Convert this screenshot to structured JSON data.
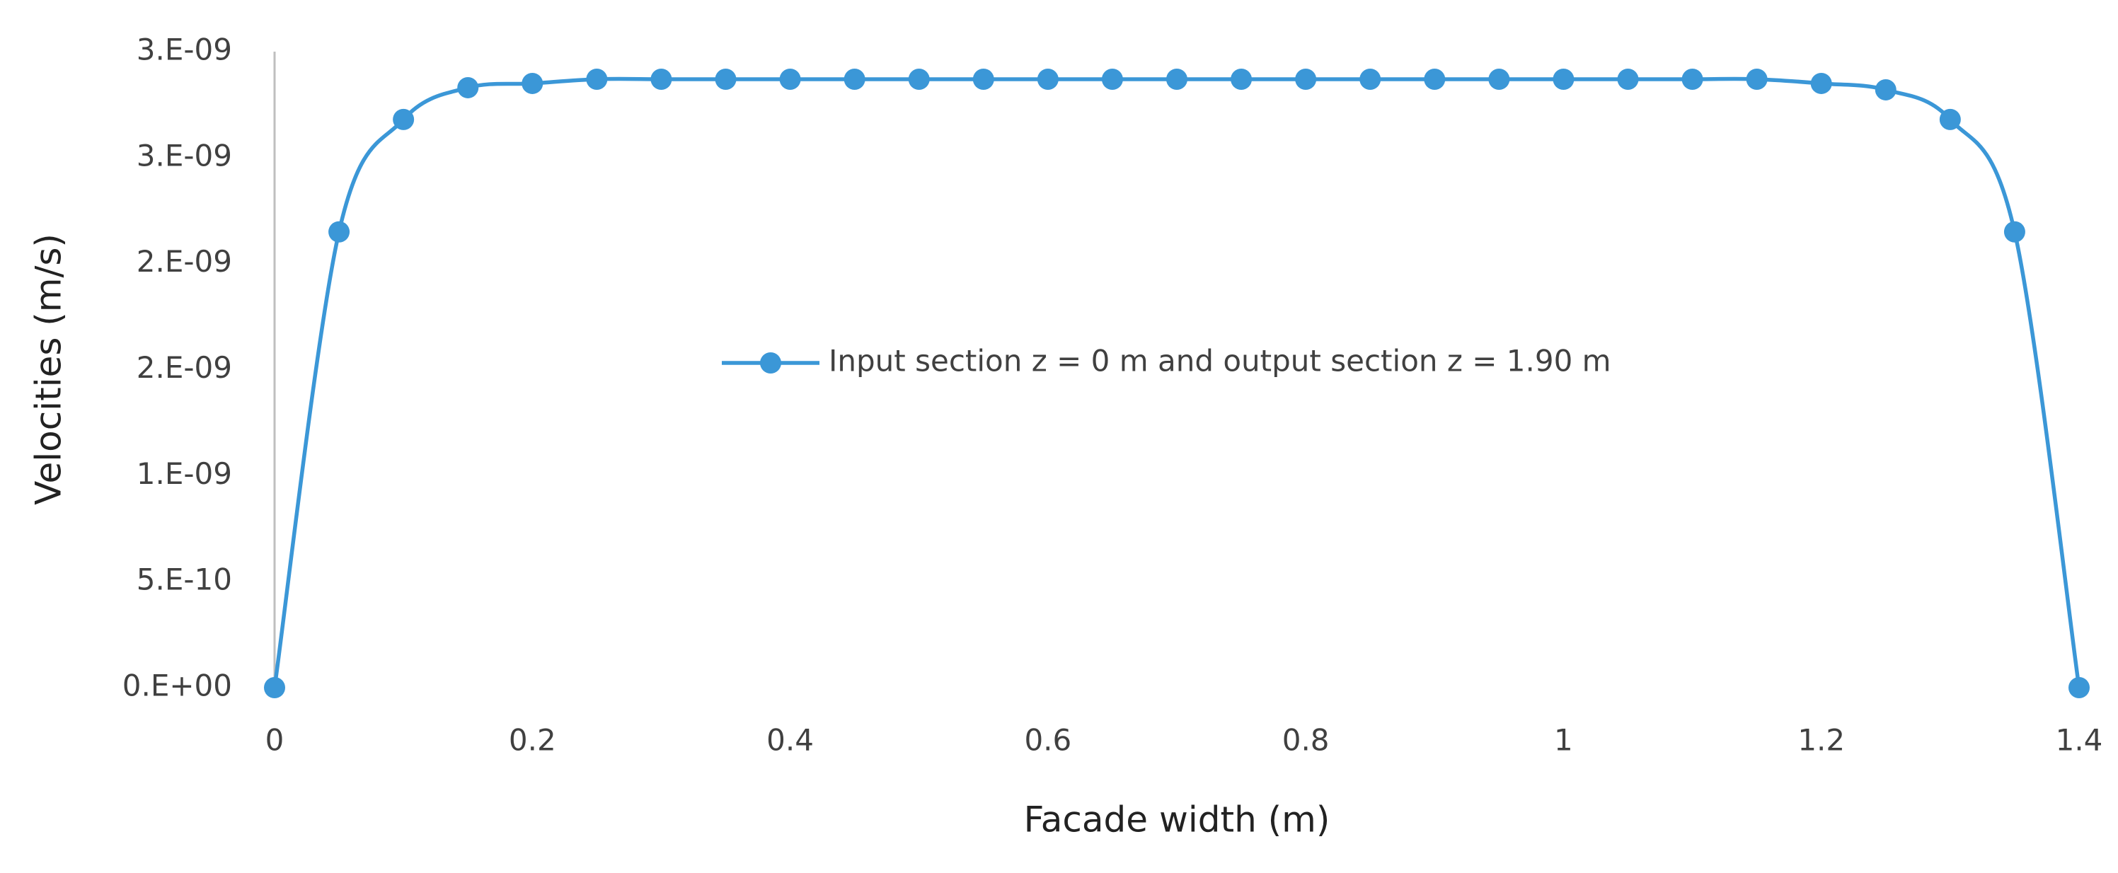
{
  "chart_data": {
    "type": "line",
    "x_label": "Facade width (m)",
    "y_label": "Velocities (m/s)",
    "x": [
      0,
      0.05,
      0.1,
      0.15,
      0.2,
      0.25,
      0.3,
      0.35,
      0.4,
      0.45,
      0.5,
      0.55,
      0.6,
      0.65,
      0.7,
      0.75,
      0.8,
      0.85,
      0.9,
      0.95,
      1,
      1.05,
      1.1,
      1.15,
      1.2,
      1.25,
      1.3,
      1.35,
      1.4
    ],
    "series": [
      {
        "name": "Input section z = 0 m and output section z = 1.90 m",
        "color": "#3b97d7",
        "values": [
          0,
          2.15e-09,
          2.68e-09,
          2.83e-09,
          2.85e-09,
          2.87e-09,
          2.87e-09,
          2.87e-09,
          2.87e-09,
          2.87e-09,
          2.87e-09,
          2.87e-09,
          2.87e-09,
          2.87e-09,
          2.87e-09,
          2.87e-09,
          2.87e-09,
          2.87e-09,
          2.87e-09,
          2.87e-09,
          2.87e-09,
          2.87e-09,
          2.87e-09,
          2.87e-09,
          2.85e-09,
          2.82e-09,
          2.68e-09,
          2.15e-09,
          0
        ]
      }
    ],
    "xlim": [
      0,
      1.4
    ],
    "xticks": [
      0,
      0.2,
      0.4,
      0.6,
      0.8,
      1,
      1.2,
      1.4
    ],
    "ylim": [
      0,
      3e-09
    ],
    "yticks": [
      {
        "value": 0,
        "label": "0.E+00"
      },
      {
        "value": 5e-10,
        "label": "5.E-10"
      },
      {
        "value": 1e-09,
        "label": "1.E-09"
      },
      {
        "value": 1.5e-09,
        "label": "2.E-09"
      },
      {
        "value": 2e-09,
        "label": "2.E-09"
      },
      {
        "value": 2.5e-09,
        "label": "3.E-09"
      },
      {
        "value": 3e-09,
        "label": "3.E-09"
      }
    ],
    "grid": false,
    "legend": "center",
    "smooth": true
  }
}
